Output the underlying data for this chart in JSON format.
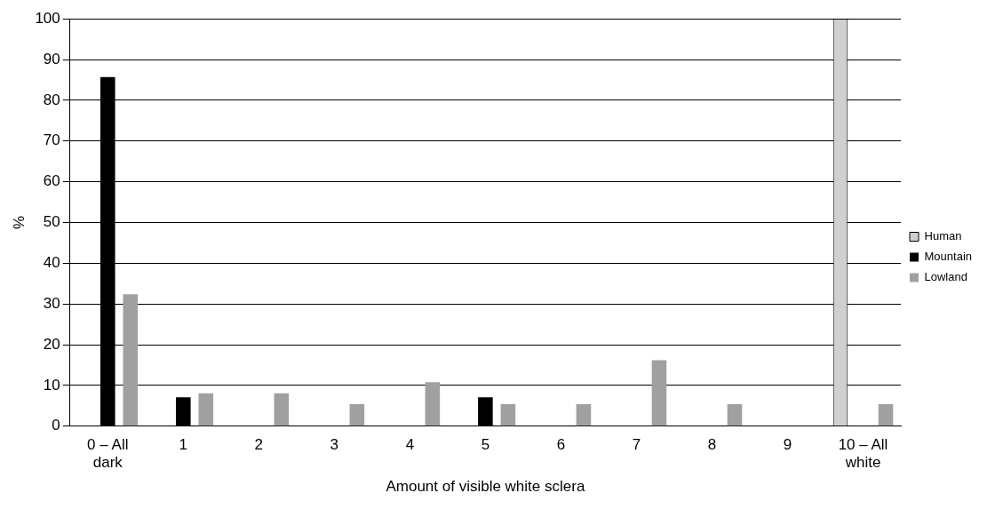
{
  "chart_data": {
    "type": "bar",
    "xlabel": "Amount of visible white sclera",
    "ylabel": "%",
    "categories": [
      "0 – All dark",
      "1",
      "2",
      "3",
      "4",
      "5",
      "6",
      "7",
      "8",
      "9",
      "10 – All white"
    ],
    "series": [
      {
        "name": "Human",
        "color": "#d0d0d0",
        "values": [
          0,
          0,
          0,
          0,
          0,
          0,
          0,
          0,
          0,
          0,
          100
        ]
      },
      {
        "name": "Mountain",
        "color": "#000000",
        "values": [
          85.7,
          7.1,
          0,
          0,
          0,
          7.1,
          0,
          0,
          0,
          0,
          0
        ]
      },
      {
        "name": "Lowland",
        "color": "#a0a0a0",
        "values": [
          32.4,
          8.1,
          8.1,
          5.4,
          10.8,
          5.4,
          5.4,
          16.2,
          5.4,
          0,
          5.4
        ]
      }
    ],
    "ylim": [
      0,
      100
    ],
    "yticks": [
      0,
      10,
      20,
      30,
      40,
      50,
      60,
      70,
      80,
      90,
      100
    ],
    "grid": "y",
    "legend": "right"
  }
}
